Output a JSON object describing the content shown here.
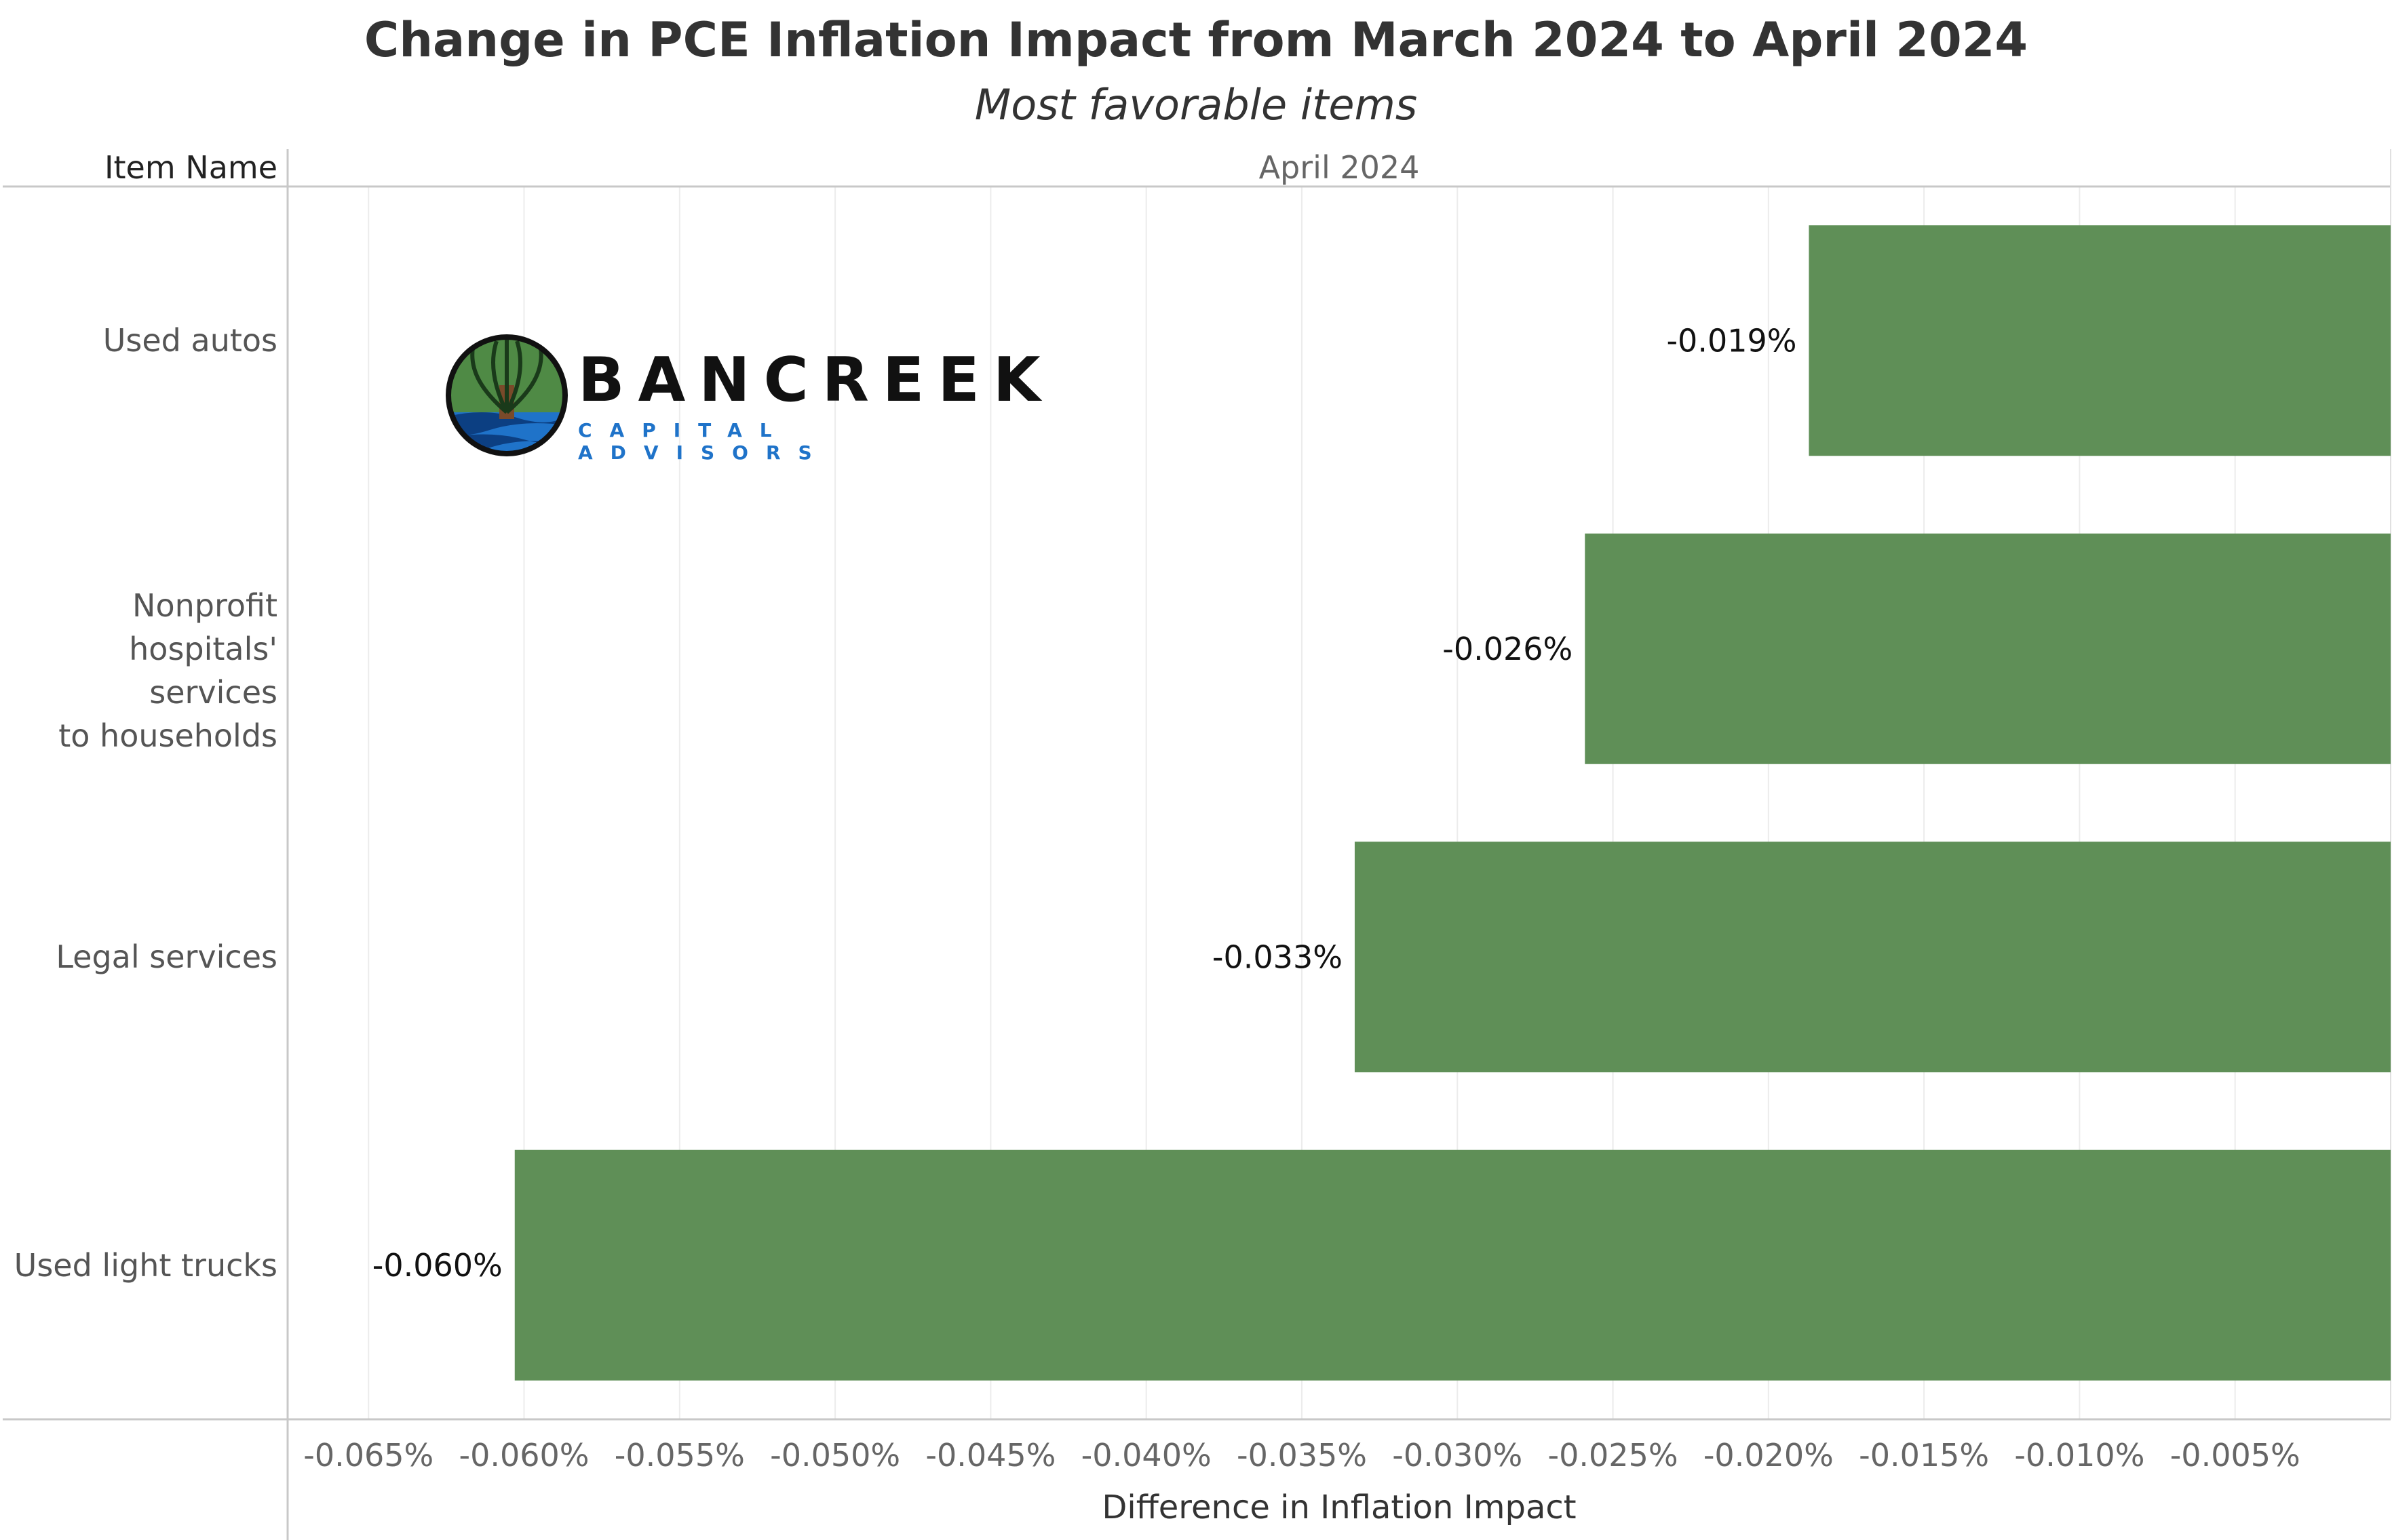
{
  "chart_data": {
    "type": "bar",
    "orientation": "horizontal",
    "title": "Change in PCE Inflation Impact from March 2024 to April 2024",
    "subtitle": "Most favorable items",
    "row_header": "Item Name",
    "column_header": "April 2024",
    "xlabel": "Difference in Inflation Impact",
    "categories": [
      "Used autos",
      "Nonprofit hospitals' services to households",
      "Legal services",
      "Used light trucks"
    ],
    "category_lines": [
      [
        "Used autos"
      ],
      [
        "Nonprofit",
        "hospitals' services",
        "to households"
      ],
      [
        "Legal services"
      ],
      [
        "Used light trucks"
      ]
    ],
    "values": [
      -0.0187,
      -0.0259,
      -0.0333,
      -0.0603
    ],
    "value_labels": [
      "-0.019%",
      "-0.026%",
      "-0.033%",
      "-0.060%"
    ],
    "xlim": [
      -0.0676,
      0.0
    ],
    "xticks": [
      -0.065,
      -0.06,
      -0.055,
      -0.05,
      -0.045,
      -0.04,
      -0.035,
      -0.03,
      -0.025,
      -0.02,
      -0.015,
      -0.01,
      -0.005
    ],
    "xtick_labels": [
      "-0.065%",
      "-0.060%",
      "-0.055%",
      "-0.050%",
      "-0.045%",
      "-0.040%",
      "-0.035%",
      "-0.030%",
      "-0.025%",
      "-0.020%",
      "-0.015%",
      "-0.010%",
      "-0.005%"
    ],
    "bar_color": "#5f8f57",
    "grid": true,
    "legend": "none"
  },
  "logo": {
    "name": "BANCREEK",
    "tagline": "CAPITAL ADVISORS",
    "icon": "tree-river-logo-icon"
  }
}
